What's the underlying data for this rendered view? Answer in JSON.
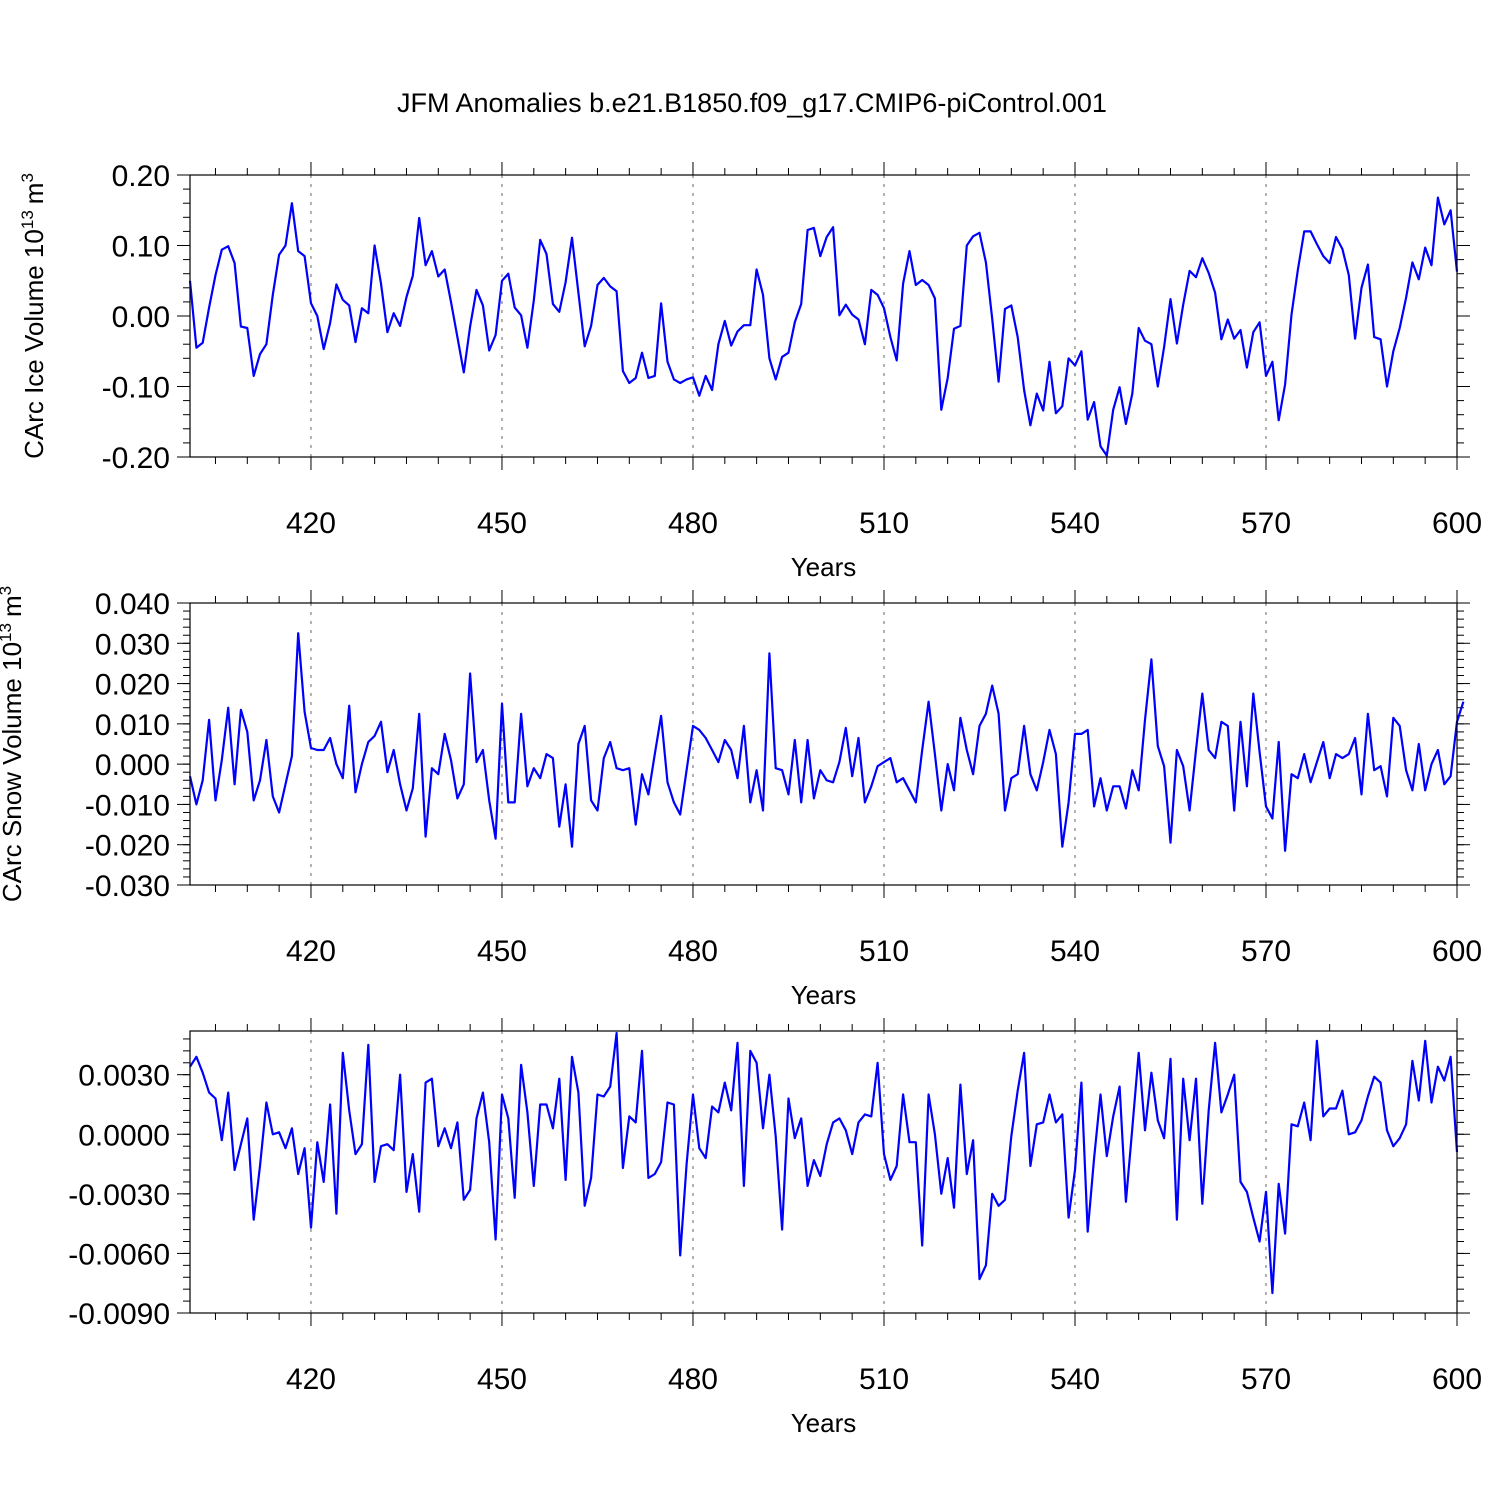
{
  "title": "JFM Anomalies b.e21.B1850.f09_g17.CMIP6-piControl.001",
  "line_color": "#0000ff",
  "chart_data": [
    {
      "type": "line",
      "xlabel": "Years",
      "ylabel": "CArc Ice Volume 10",
      "ylabel_exponent": "13",
      "ylabel_unit": "m",
      "ylabel_unit_exponent": "3",
      "xlim": [
        401,
        600
      ],
      "ylim": [
        -0.2,
        0.2
      ],
      "xticks": [
        "420",
        "450",
        "480",
        "510",
        "540",
        "570",
        "600"
      ],
      "yticks": [
        "0.20",
        "0.10",
        "0.00",
        "-0.10",
        "-0.20"
      ],
      "grid": "vertical dashed at major x ticks",
      "series": [
        {
          "x_start": 401,
          "x_step": 1,
          "values": [
            0.05,
            -0.045,
            -0.038,
            0.012,
            0.058,
            0.094,
            0.099,
            0.075,
            -0.015,
            -0.017,
            -0.085,
            -0.054,
            -0.04,
            0.03,
            0.087,
            0.1,
            0.16,
            0.092,
            0.085,
            0.018,
            0.0,
            -0.047,
            -0.01,
            0.045,
            0.023,
            0.015,
            -0.037,
            0.011,
            0.004,
            0.1,
            0.046,
            -0.023,
            0.004,
            -0.014,
            0.027,
            0.057,
            0.139,
            0.072,
            0.092,
            0.056,
            0.066,
            0.02,
            -0.03,
            -0.08,
            -0.015,
            0.037,
            0.015,
            -0.049,
            -0.027,
            0.05,
            0.06,
            0.012,
            0.001,
            -0.045,
            0.022,
            0.108,
            0.088,
            0.017,
            0.006,
            0.048,
            0.111,
            0.033,
            -0.043,
            -0.014,
            0.044,
            0.054,
            0.042,
            0.035,
            -0.078,
            -0.095,
            -0.088,
            -0.052,
            -0.088,
            -0.085,
            0.018,
            -0.065,
            -0.09,
            -0.095,
            -0.09,
            -0.087,
            -0.113,
            -0.085,
            -0.105,
            -0.04,
            -0.007,
            -0.042,
            -0.022,
            -0.013,
            -0.013,
            0.066,
            0.03,
            -0.06,
            -0.09,
            -0.058,
            -0.052,
            -0.009,
            0.017,
            0.122,
            0.125,
            0.085,
            0.112,
            0.126,
            0.001,
            0.016,
            0.002,
            -0.005,
            -0.04,
            0.037,
            0.03,
            0.011,
            -0.03,
            -0.063,
            0.046,
            0.092,
            0.044,
            0.051,
            0.044,
            0.025,
            -0.133,
            -0.088,
            -0.018,
            -0.014,
            0.1,
            0.113,
            0.118,
            0.076,
            -0.004,
            -0.093,
            0.01,
            0.015,
            -0.03,
            -0.105,
            -0.155,
            -0.11,
            -0.134,
            -0.065,
            -0.138,
            -0.128,
            -0.06,
            -0.07,
            -0.05,
            -0.147,
            -0.122,
            -0.185,
            -0.198,
            -0.133,
            -0.101,
            -0.153,
            -0.11,
            -0.017,
            -0.035,
            -0.04,
            -0.1,
            -0.044,
            0.024,
            -0.039,
            0.016,
            0.064,
            0.055,
            0.082,
            0.061,
            0.033,
            -0.033,
            -0.005,
            -0.032,
            -0.02,
            -0.073,
            -0.023,
            -0.009,
            -0.085,
            -0.065,
            -0.148,
            -0.097,
            0.002,
            0.065,
            0.12,
            0.12,
            0.102,
            0.085,
            0.075,
            0.112,
            0.095,
            0.058,
            -0.032,
            0.04,
            0.073,
            -0.03,
            -0.033,
            -0.1,
            -0.05,
            -0.017,
            0.026,
            0.076,
            0.052,
            0.097,
            0.072,
            0.168,
            0.13,
            0.15,
            0.063
          ]
        }
      ]
    },
    {
      "type": "line",
      "xlabel": "Years",
      "ylabel": "CArc Snow Volume 10",
      "ylabel_exponent": "13",
      "ylabel_unit": "m",
      "ylabel_unit_exponent": "3",
      "xlim": [
        401,
        600
      ],
      "ylim": [
        -0.03,
        0.04
      ],
      "xticks": [
        "420",
        "450",
        "480",
        "510",
        "540",
        "570",
        "600"
      ],
      "yticks": [
        "0.040",
        "0.030",
        "0.020",
        "0.010",
        "0.000",
        "-0.010",
        "-0.020",
        "-0.030"
      ],
      "grid": "vertical dashed at major x ticks",
      "series": [
        {
          "x_start": 401,
          "x_step": 1,
          "values": [
            -0.003,
            -0.01,
            -0.004,
            0.011,
            -0.009,
            0.001,
            0.014,
            -0.005,
            0.0135,
            0.008,
            -0.009,
            -0.004,
            0.006,
            -0.008,
            -0.012,
            -0.005,
            0.002,
            0.0325,
            0.013,
            0.004,
            0.0035,
            0.0035,
            0.0065,
            0.0,
            -0.0035,
            0.0145,
            -0.007,
            0.0,
            0.0055,
            0.007,
            0.0105,
            -0.002,
            0.0035,
            -0.005,
            -0.0115,
            -0.006,
            0.0125,
            -0.018,
            -0.001,
            -0.0025,
            0.0075,
            0.001,
            -0.0085,
            -0.005,
            0.0225,
            0.0005,
            0.0035,
            -0.009,
            -0.0185,
            0.015,
            -0.0095,
            -0.0095,
            0.0125,
            -0.0055,
            -0.001,
            -0.0035,
            0.0025,
            0.0015,
            -0.0155,
            -0.005,
            -0.0205,
            0.005,
            0.0095,
            -0.009,
            -0.0115,
            0.0015,
            0.0055,
            -0.001,
            -0.0015,
            -0.001,
            -0.015,
            -0.0025,
            -0.0075,
            0.0025,
            0.012,
            -0.0045,
            -0.0095,
            -0.0125,
            -0.0015,
            0.0095,
            0.0085,
            0.0065,
            0.0035,
            0.0005,
            0.006,
            0.0035,
            -0.0035,
            0.0095,
            -0.0095,
            -0.0015,
            -0.0115,
            0.0275,
            -0.001,
            -0.0015,
            -0.0075,
            0.006,
            -0.0095,
            0.006,
            -0.0085,
            -0.0015,
            -0.004,
            -0.0045,
            0.0005,
            0.009,
            -0.003,
            0.0065,
            -0.0095,
            -0.0055,
            -0.0005,
            0.0005,
            0.0015,
            -0.0045,
            -0.0035,
            -0.0065,
            -0.0095,
            0.0035,
            0.0155,
            0.0025,
            -0.0115,
            0.0,
            -0.0065,
            0.0115,
            0.0035,
            -0.0025,
            0.0095,
            0.0125,
            0.0195,
            0.0125,
            -0.0115,
            -0.0035,
            -0.0025,
            0.0095,
            -0.0025,
            -0.0065,
            0.0005,
            0.0085,
            0.0025,
            -0.0205,
            -0.0095,
            0.0075,
            0.0075,
            0.0085,
            -0.0105,
            -0.0035,
            -0.0115,
            -0.0055,
            -0.0055,
            -0.011,
            -0.0015,
            -0.0065,
            0.011,
            0.026,
            0.0045,
            -0.0005,
            -0.0195,
            0.0035,
            -0.0005,
            -0.0115,
            0.0035,
            0.0175,
            0.0035,
            0.0015,
            0.0105,
            0.0095,
            -0.0115,
            0.0105,
            -0.0055,
            0.0175,
            0.003,
            -0.0105,
            -0.0135,
            0.0055,
            -0.0215,
            -0.0025,
            -0.0035,
            0.0025,
            -0.0045,
            0.0005,
            0.0055,
            -0.0035,
            0.0025,
            0.0015,
            0.0025,
            0.0065,
            -0.0075,
            0.0125,
            -0.0015,
            -0.0005,
            -0.008,
            0.0115,
            0.0095,
            -0.0015,
            -0.0065,
            0.005,
            -0.0065,
            0.0,
            0.0035,
            -0.005,
            -0.003,
            0.0105,
            0.0155
          ]
        }
      ]
    },
    {
      "type": "line",
      "xlabel": "Years",
      "xlim": [
        401,
        600
      ],
      "ylim": [
        -0.009,
        0.0052
      ],
      "xticks": [
        "420",
        "450",
        "480",
        "510",
        "540",
        "570",
        "600"
      ],
      "yticks": [
        "0.0030",
        "0.0000",
        "-0.0030",
        "-0.0060",
        "-0.0090"
      ],
      "grid": "vertical dashed at major x ticks",
      "series": [
        {
          "x_start": 401,
          "x_step": 1,
          "values": [
            0.0034,
            0.0039,
            0.0031,
            0.0021,
            0.0018,
            -0.0003,
            0.0021,
            -0.0018,
            -0.0005,
            0.0008,
            -0.0043,
            -0.0016,
            0.0016,
            0.0,
            0.0001,
            -0.0007,
            0.0003,
            -0.002,
            -0.0007,
            -0.0047,
            -0.0004,
            -0.0024,
            0.0015,
            -0.004,
            0.0041,
            0.0012,
            -0.001,
            -0.0005,
            0.0045,
            -0.0024,
            -0.0006,
            -0.0005,
            -0.0008,
            0.003,
            -0.0029,
            -0.001,
            -0.0039,
            0.0026,
            0.0028,
            -0.0006,
            0.0003,
            -0.0007,
            0.0006,
            -0.0033,
            -0.0028,
            0.0008,
            0.0021,
            -0.0004,
            -0.0053,
            0.002,
            0.0008,
            -0.0032,
            0.0035,
            0.0011,
            -0.0026,
            0.0015,
            0.0015,
            0.0003,
            0.0028,
            -0.0023,
            0.0039,
            0.0021,
            -0.0036,
            -0.0022,
            0.002,
            0.0019,
            0.0024,
            0.0051,
            -0.0017,
            0.0009,
            0.0006,
            0.0042,
            -0.0022,
            -0.002,
            -0.0014,
            0.0016,
            0.0015,
            -0.0061,
            -0.0015,
            0.002,
            -0.0007,
            -0.0012,
            0.0014,
            0.0011,
            0.0026,
            0.0012,
            0.0046,
            -0.0026,
            0.0042,
            0.0036,
            0.0003,
            0.003,
            -0.0001,
            -0.0048,
            0.0018,
            -0.0002,
            0.0008,
            -0.0026,
            -0.0013,
            -0.0021,
            -0.0005,
            0.0006,
            0.0008,
            0.0002,
            -0.001,
            0.0006,
            0.001,
            0.0009,
            0.0036,
            -0.001,
            -0.0023,
            -0.0016,
            0.002,
            -0.0004,
            -0.0004,
            -0.0056,
            0.002,
            0.0,
            -0.003,
            -0.0012,
            -0.0037,
            0.0025,
            -0.002,
            -0.0003,
            -0.0073,
            -0.0066,
            -0.003,
            -0.0036,
            -0.0033,
            -0.0001,
            0.0022,
            0.0041,
            -0.0016,
            0.0005,
            0.0006,
            0.002,
            0.0006,
            0.001,
            -0.0042,
            -0.0018,
            0.0026,
            -0.0049,
            -0.0012,
            0.002,
            -0.0011,
            0.0009,
            0.0024,
            -0.0034,
            0.0003,
            0.0041,
            0.0002,
            0.0031,
            0.0007,
            -0.0002,
            0.0038,
            -0.0043,
            0.0028,
            -0.0003,
            0.0028,
            -0.0035,
            0.0012,
            0.0046,
            0.0011,
            0.002,
            0.003,
            -0.0024,
            -0.0029,
            -0.0042,
            -0.0054,
            -0.0029,
            -0.008,
            -0.0025,
            -0.005,
            0.0005,
            0.0004,
            0.0016,
            -0.0003,
            0.0047,
            0.0009,
            0.0013,
            0.0013,
            0.0022,
            0.0,
            0.0001,
            0.0007,
            0.0019,
            0.0029,
            0.0026,
            0.0002,
            -0.0006,
            -0.0002,
            0.0005,
            0.0037,
            0.0017,
            0.0047,
            0.0016,
            0.0034,
            0.0027,
            0.0039,
            -0.0009
          ]
        }
      ]
    }
  ]
}
